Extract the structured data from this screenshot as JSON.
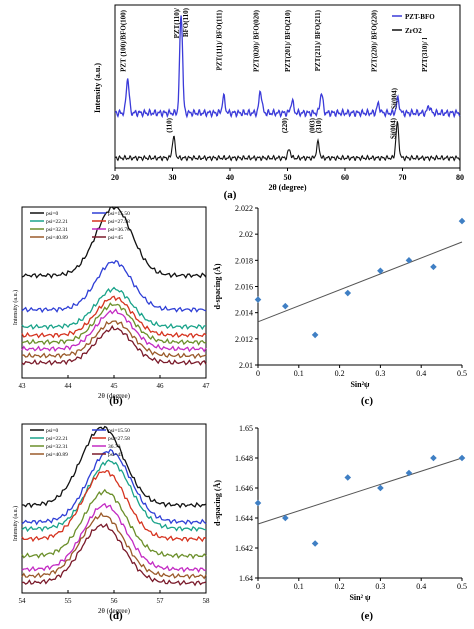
{
  "panels": {
    "a": {
      "label": "(a)"
    },
    "b": {
      "label": "(b)"
    },
    "c": {
      "label": "(c)"
    },
    "d": {
      "label": "(d)"
    },
    "e": {
      "label": "(e)"
    }
  },
  "colors": {
    "pzt_bfo": "#3b3bd9",
    "zro2": "#111111",
    "marker": "#3f7fc4",
    "trend": "#555555",
    "psi0": "#111111",
    "psi15": "#2f3fd6",
    "psi22": "#1aa38a",
    "psi27": "#d6331f",
    "psi32": "#6b8f2a",
    "psi36": "#c32bc3",
    "psi40": "#9a5a2a",
    "psi45": "#7a1a2a"
  },
  "chart_data": [
    {
      "panel": "a",
      "type": "line",
      "xlabel": "2θ (degree)",
      "ylabel": "Intensity (a.u.)",
      "xlim": [
        20,
        80
      ],
      "xticks": [
        "20",
        "30",
        "40",
        "50",
        "60",
        "70",
        "80"
      ],
      "legend": {
        "position": "top-right",
        "entries": [
          "PZT-BFO",
          "ZrO2"
        ]
      },
      "series": [
        {
          "name": "PZT-BFO",
          "peaks": [
            {
              "x": 22.2,
              "h": 0.35
            },
            {
              "x": 31.5,
              "h": 1.0
            },
            {
              "x": 38.9,
              "h": 0.16
            },
            {
              "x": 45.3,
              "h": 0.22
            },
            {
              "x": 50.8,
              "h": 0.12
            },
            {
              "x": 55.9,
              "h": 0.2
            },
            {
              "x": 65.8,
              "h": 0.09
            },
            {
              "x": 69.2,
              "h": 0.14
            },
            {
              "x": 74.6,
              "h": 0.07
            }
          ]
        },
        {
          "name": "ZrO2",
          "peaks": [
            {
              "x": 30.2,
              "h": 0.3
            },
            {
              "x": 50.3,
              "h": 0.12
            },
            {
              "x": 55.3,
              "h": 0.22
            },
            {
              "x": 69.1,
              "h": 0.5
            }
          ]
        }
      ],
      "annotations_top": [
        {
          "x": 22.2,
          "text": "PZT (100)/BFO(100)"
        },
        {
          "x": 31.5,
          "text": "PZT(110)/"
        },
        {
          "x": 33.0,
          "text": "BFO(110)"
        },
        {
          "x": 38.9,
          "text": "PZT(111)/ BFO(111)"
        },
        {
          "x": 45.3,
          "text": "PZT(020)/ BFO(020)"
        },
        {
          "x": 50.8,
          "text": "PZT(201)/ BFO(210)"
        },
        {
          "x": 56.0,
          "text": "PZT(211)/ BFO(211)"
        },
        {
          "x": 65.8,
          "text": "PZT(220)/ BFO(220)"
        },
        {
          "x": 69.3,
          "text": "Si(004)"
        },
        {
          "x": 74.6,
          "text": "PZT(310)/ BFO(310)"
        }
      ],
      "annotations_bottom": [
        {
          "x": 30.2,
          "text": "(110)"
        },
        {
          "x": 50.3,
          "text": "(220)"
        },
        {
          "x": 55.0,
          "text": "(003)"
        },
        {
          "x": 56.2,
          "text": "(310)"
        },
        {
          "x": 69.1,
          "text": "Si(004)"
        }
      ]
    },
    {
      "panel": "b",
      "type": "line",
      "xlabel": "2θ (degree)",
      "ylabel": "Intensity (a.u.)",
      "xlim": [
        43,
        47
      ],
      "xticks": [
        "43",
        "44",
        "45",
        "46",
        "47"
      ],
      "legend": {
        "position": "top",
        "entries": [
          "psi=0",
          "psi=15.50",
          "psi=22.21",
          "psi=27.58",
          "psi=32.31",
          "psi=36.70",
          "psi=40.89",
          "psi=45"
        ]
      },
      "series": [
        {
          "name": "psi=0",
          "peak": 45.0,
          "base": 0.6,
          "amp": 0.4
        },
        {
          "name": "psi=15.50",
          "peak": 45.0,
          "base": 0.4,
          "amp": 0.28
        },
        {
          "name": "psi=22.21",
          "peak": 45.0,
          "base": 0.3,
          "amp": 0.22
        },
        {
          "name": "psi=27.58",
          "peak": 45.0,
          "base": 0.25,
          "amp": 0.22
        },
        {
          "name": "psi=32.31",
          "peak": 45.0,
          "base": 0.21,
          "amp": 0.22
        },
        {
          "name": "psi=36.70",
          "peak": 45.0,
          "base": 0.17,
          "amp": 0.22
        },
        {
          "name": "psi=40.89",
          "peak": 45.0,
          "base": 0.13,
          "amp": 0.2
        },
        {
          "name": "psi=45",
          "peak": 45.0,
          "base": 0.09,
          "amp": 0.2
        }
      ]
    },
    {
      "panel": "c",
      "type": "scatter",
      "xlabel": "Sin²ψ",
      "ylabel": "d-spacing (Å)",
      "xlim": [
        0,
        0.5
      ],
      "ylim": [
        2.01,
        2.022
      ],
      "xticks": [
        "0",
        "0.1",
        "0.2",
        "0.3",
        "0.4",
        "0.5"
      ],
      "yticks": [
        "2.01",
        "2.012",
        "2.014",
        "2.016",
        "2.018",
        "2.02",
        "2.022"
      ],
      "points": [
        {
          "x": 0,
          "y": 2.015
        },
        {
          "x": 0.067,
          "y": 2.0145
        },
        {
          "x": 0.14,
          "y": 2.0123
        },
        {
          "x": 0.22,
          "y": 2.0155
        },
        {
          "x": 0.3,
          "y": 2.0172
        },
        {
          "x": 0.37,
          "y": 2.018
        },
        {
          "x": 0.43,
          "y": 2.0175
        },
        {
          "x": 0.5,
          "y": 2.021
        }
      ],
      "trendline": {
        "x1": 0,
        "y1": 2.0133,
        "x2": 0.5,
        "y2": 2.0194
      }
    },
    {
      "panel": "d",
      "type": "line",
      "xlabel": "2θ (degree)",
      "ylabel": "Intensity (a.u.)",
      "xlim": [
        54,
        58
      ],
      "xticks": [
        "54",
        "55",
        "56",
        "57",
        "58"
      ],
      "legend": {
        "position": "top",
        "entries": [
          "psi=0",
          "psi=15.50",
          "psi=22.21",
          "psi=27.58",
          "psi=32.31",
          "36.70",
          "psi=40.89",
          "psi=45"
        ]
      },
      "series": [
        {
          "name": "psi=0",
          "peak": 55.75,
          "base": 0.52,
          "amp": 0.46
        },
        {
          "name": "psi=15.50",
          "peak": 55.9,
          "base": 0.42,
          "amp": 0.42
        },
        {
          "name": "psi=22.21",
          "peak": 55.9,
          "base": 0.38,
          "amp": 0.4
        },
        {
          "name": "psi=27.58",
          "peak": 55.8,
          "base": 0.32,
          "amp": 0.4
        },
        {
          "name": "psi=32.31",
          "peak": 55.8,
          "base": 0.22,
          "amp": 0.38
        },
        {
          "name": "36.70",
          "peak": 55.8,
          "base": 0.14,
          "amp": 0.38
        },
        {
          "name": "psi=40.89",
          "peak": 55.75,
          "base": 0.1,
          "amp": 0.36
        },
        {
          "name": "psi=45",
          "peak": 55.75,
          "base": 0.06,
          "amp": 0.34
        }
      ]
    },
    {
      "panel": "e",
      "type": "scatter",
      "xlabel": "Sin² ψ",
      "ylabel": "d-spacing (Å)",
      "xlim": [
        0,
        0.5
      ],
      "ylim": [
        1.64,
        1.65
      ],
      "xticks": [
        "0",
        "0.1",
        "0.2",
        "0.3",
        "0.4",
        "0.5"
      ],
      "yticks": [
        "1.64",
        "1.642",
        "1.644",
        "1.646",
        "1.648",
        "1.65"
      ],
      "points": [
        {
          "x": 0,
          "y": 1.645
        },
        {
          "x": 0.067,
          "y": 1.644
        },
        {
          "x": 0.14,
          "y": 1.6423
        },
        {
          "x": 0.22,
          "y": 1.6467
        },
        {
          "x": 0.3,
          "y": 1.646
        },
        {
          "x": 0.37,
          "y": 1.647
        },
        {
          "x": 0.43,
          "y": 1.648
        },
        {
          "x": 0.5,
          "y": 1.648
        }
      ],
      "trendline": {
        "x1": 0,
        "y1": 1.6436,
        "x2": 0.5,
        "y2": 1.648
      }
    }
  ]
}
